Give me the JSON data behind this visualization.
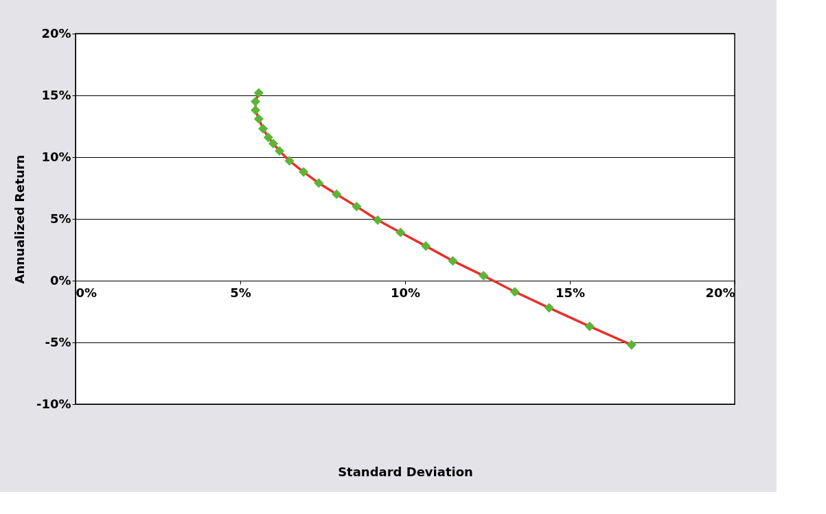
{
  "chart_data": {
    "type": "scatter",
    "xlabel": "Standard Deviation",
    "ylabel": "Annualized Return",
    "x": [
      5.56,
      5.46,
      5.46,
      5.56,
      5.69,
      5.85,
      6.0,
      6.19,
      6.49,
      6.92,
      7.38,
      7.92,
      8.53,
      9.17,
      9.86,
      10.63,
      11.45,
      12.38,
      13.33,
      14.37,
      15.6,
      16.87
    ],
    "series": [
      {
        "type": "line",
        "color": "#e8302a",
        "marker": "none",
        "values": [
          15.2,
          14.5,
          13.8,
          13.1,
          12.3,
          11.6,
          11.1,
          10.5,
          9.7,
          8.8,
          7.9,
          7.0,
          6.0,
          4.9,
          3.9,
          2.8,
          1.6,
          0.4,
          -0.9,
          -2.2,
          -3.7,
          -5.2
        ]
      },
      {
        "type": "scatter",
        "color": "#5bb637",
        "marker": "diamond",
        "values": [
          15.2,
          14.5,
          13.8,
          13.1,
          12.3,
          11.6,
          11.1,
          10.5,
          9.7,
          8.8,
          7.9,
          7.0,
          6.0,
          4.9,
          3.9,
          2.8,
          1.6,
          0.4,
          -0.9,
          -2.2,
          -3.7,
          -5.2
        ]
      }
    ],
    "xlim": [
      0,
      20
    ],
    "xticks": [
      {
        "value": 0,
        "label": "0%"
      },
      {
        "value": 5,
        "label": "5%"
      },
      {
        "value": 10,
        "label": "10%"
      },
      {
        "value": 15,
        "label": "15%"
      },
      {
        "value": 20,
        "label": "20%"
      }
    ],
    "ylim": [
      -10,
      20
    ],
    "yticks": [
      {
        "value": -10,
        "label": "-10%"
      },
      {
        "value": -5,
        "label": "-5%"
      },
      {
        "value": 0,
        "label": "0%"
      },
      {
        "value": 5,
        "label": "5%"
      },
      {
        "value": 10,
        "label": "10%"
      },
      {
        "value": 15,
        "label": "15%"
      },
      {
        "value": 20,
        "label": "20%"
      }
    ],
    "grid": "y",
    "legend": false
  }
}
